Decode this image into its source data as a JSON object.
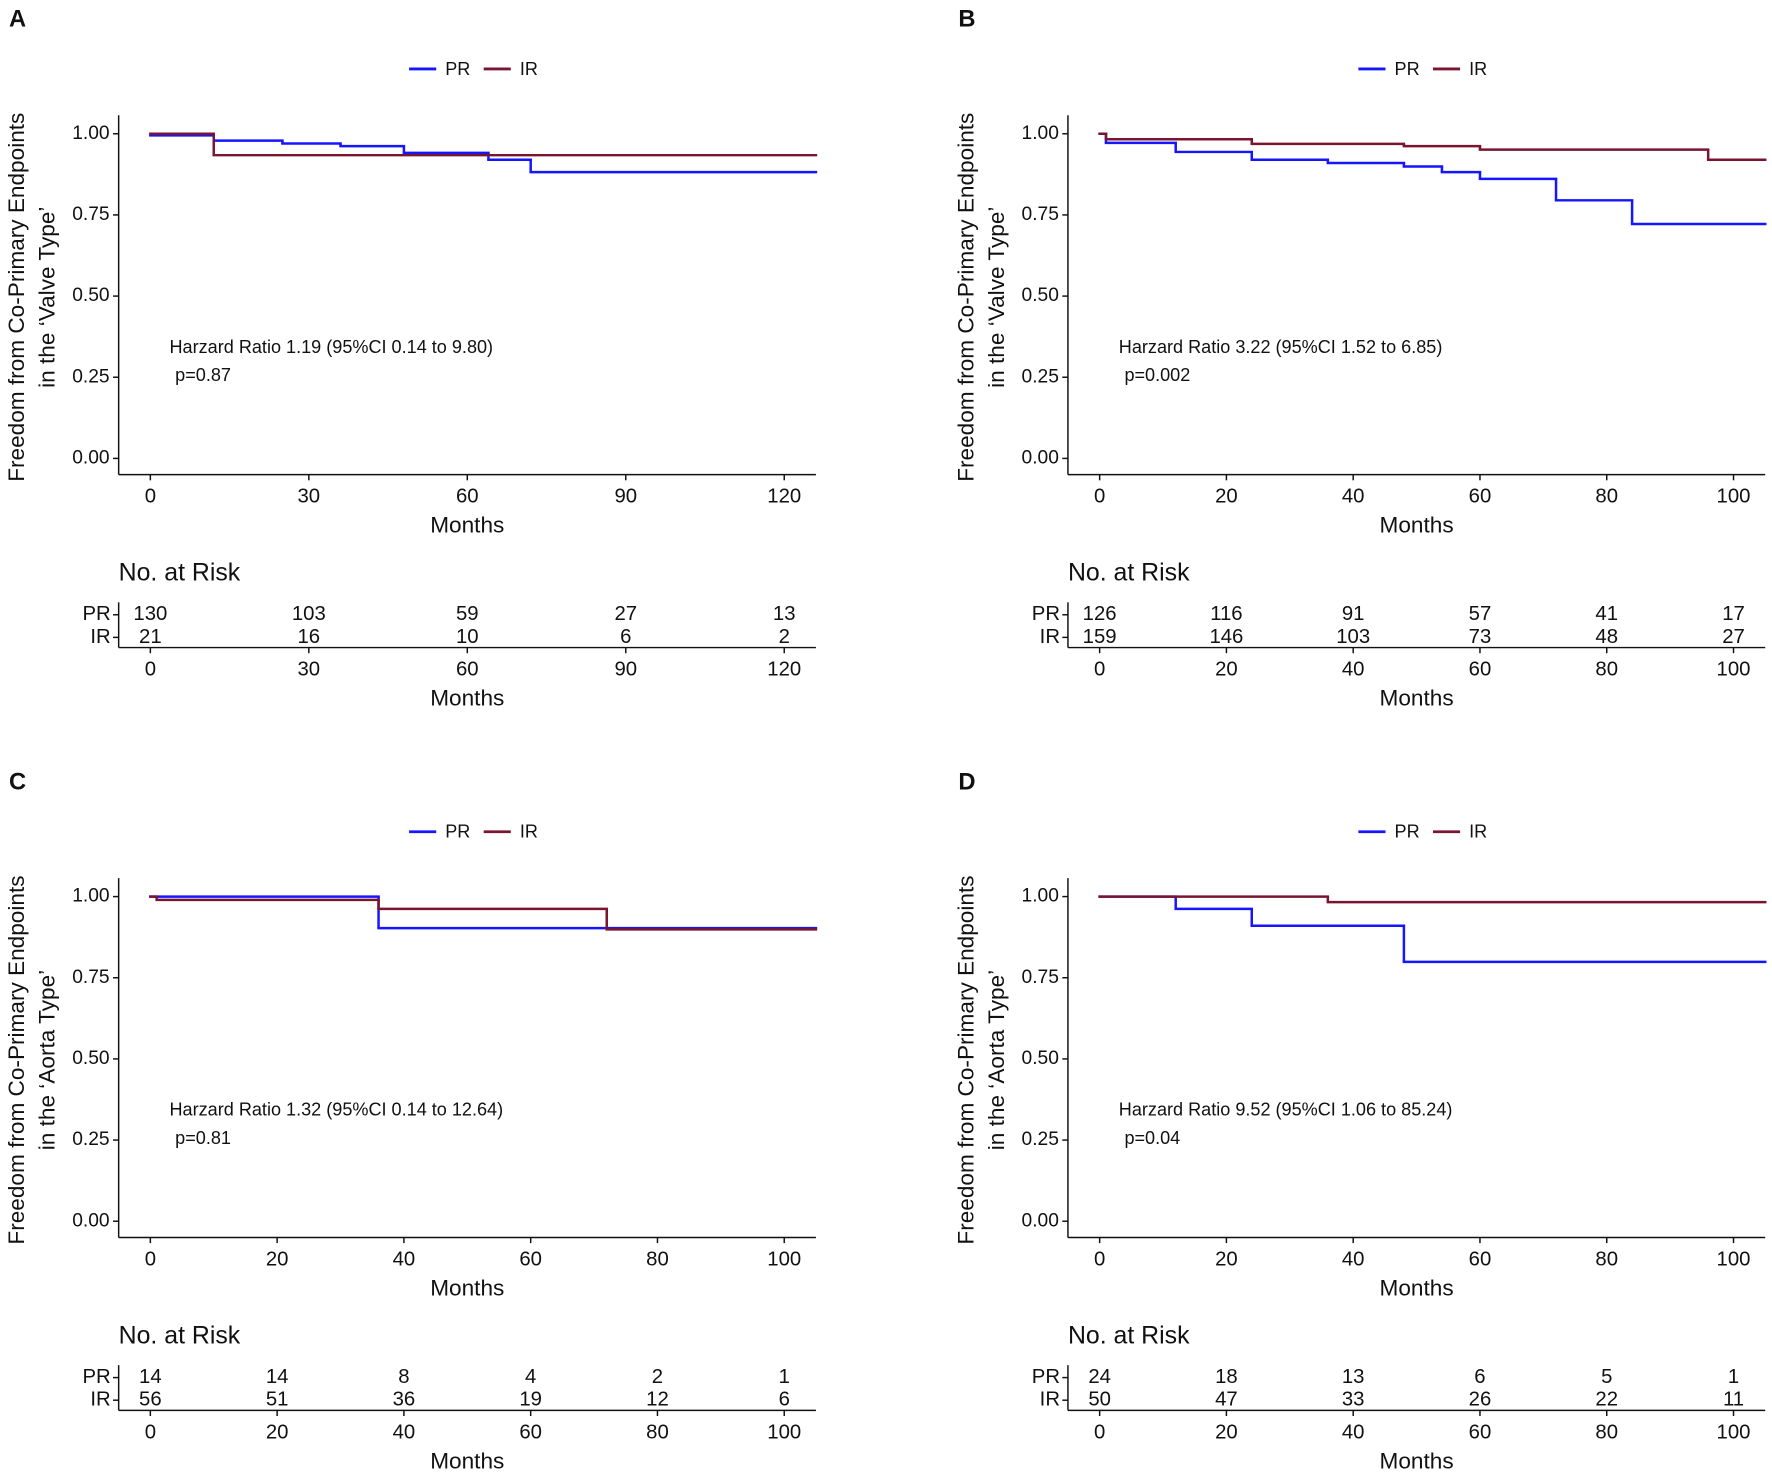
{
  "chart_data": [
    {
      "type": "line",
      "step": true,
      "panel_label": "A",
      "legend": "top",
      "ylabel": [
        "Freedom from Co-Primary Endpoints",
        "in the ‘Valve Type’"
      ],
      "xlabel": "Months",
      "xlim": [
        -6,
        126
      ],
      "xticks": [
        0,
        30,
        60,
        90,
        120
      ],
      "ylim": [
        -0.05,
        1.05
      ],
      "yticks": [
        {
          "value": 0,
          "label": "0.00"
        },
        {
          "value": 0.25,
          "label": "0.25"
        },
        {
          "value": 0.5,
          "label": "0.50"
        },
        {
          "value": 0.75,
          "label": "0.75"
        },
        {
          "value": 1,
          "label": "1.00"
        }
      ],
      "series": [
        {
          "name": "PR",
          "color": "#1515ff",
          "x": [
            0,
            12,
            25,
            36,
            48,
            64,
            72,
            126
          ],
          "values": [
            0.995,
            0.979,
            0.97,
            0.962,
            0.941,
            0.92,
            0.882,
            0.882
          ],
          "at_risk": [
            130,
            103,
            59,
            27,
            13
          ]
        },
        {
          "name": "IR",
          "color": "#7a1530",
          "x": [
            0,
            12,
            126
          ],
          "values": [
            1.0,
            0.934,
            0.934
          ],
          "at_risk": [
            21,
            16,
            10,
            6,
            2
          ]
        }
      ],
      "annotations": [
        "Harzard Ratio 1.19 (95%CI 0.14 to 9.80)",
        "p=0.87"
      ],
      "risk_title": "No. at Risk"
    },
    {
      "type": "line",
      "step": true,
      "panel_label": "B",
      "legend": "top",
      "ylabel": [
        "Freedom from Co-Primary Endpoints",
        "in the ‘Valve Type’"
      ],
      "xlabel": "Months",
      "xlim": [
        -5,
        105
      ],
      "xticks": [
        0,
        20,
        40,
        60,
        80,
        100
      ],
      "ylim": [
        -0.05,
        1.05
      ],
      "yticks": [
        {
          "value": 0,
          "label": "0.00"
        },
        {
          "value": 0.25,
          "label": "0.25"
        },
        {
          "value": 0.5,
          "label": "0.50"
        },
        {
          "value": 0.75,
          "label": "0.75"
        },
        {
          "value": 1,
          "label": "1.00"
        }
      ],
      "series": [
        {
          "name": "PR",
          "color": "#1515ff",
          "x": [
            0,
            1,
            12,
            24,
            36,
            48,
            54,
            60,
            72,
            84,
            105
          ],
          "values": [
            1.0,
            0.972,
            0.944,
            0.92,
            0.91,
            0.899,
            0.882,
            0.861,
            0.795,
            0.722,
            0.722
          ],
          "at_risk": [
            126,
            116,
            91,
            57,
            41,
            17
          ]
        },
        {
          "name": "IR",
          "color": "#7a1530",
          "x": [
            0,
            1,
            24,
            48,
            60,
            96,
            105
          ],
          "values": [
            1.0,
            0.983,
            0.969,
            0.962,
            0.951,
            0.92,
            0.92
          ],
          "at_risk": [
            159,
            146,
            103,
            73,
            48,
            27
          ]
        }
      ],
      "annotations": [
        "Harzard Ratio 3.22 (95%CI 1.52 to 6.85)",
        "p=0.002"
      ],
      "risk_title": "No. at Risk"
    },
    {
      "type": "line",
      "step": true,
      "panel_label": "C",
      "legend": "top",
      "ylabel": [
        "Freedom from Co-Primary Endpoints",
        "in the ‘Aorta Type’"
      ],
      "xlabel": "Months",
      "xlim": [
        -5,
        105
      ],
      "xticks": [
        0,
        20,
        40,
        60,
        80,
        100
      ],
      "ylim": [
        -0.05,
        1.05
      ],
      "yticks": [
        {
          "value": 0,
          "label": "0.00"
        },
        {
          "value": 0.25,
          "label": "0.25"
        },
        {
          "value": 0.5,
          "label": "0.50"
        },
        {
          "value": 0.75,
          "label": "0.75"
        },
        {
          "value": 1,
          "label": "1.00"
        }
      ],
      "series": [
        {
          "name": "PR",
          "color": "#1515ff",
          "x": [
            0,
            36,
            105
          ],
          "values": [
            1.0,
            0.903,
            0.903
          ],
          "at_risk": [
            14,
            14,
            8,
            4,
            2,
            1
          ]
        },
        {
          "name": "IR",
          "color": "#7a1530",
          "x": [
            0,
            1,
            36,
            72,
            105
          ],
          "values": [
            1.0,
            0.99,
            0.962,
            0.899,
            0.899
          ],
          "at_risk": [
            56,
            51,
            36,
            19,
            12,
            6
          ]
        }
      ],
      "annotations": [
        "Harzard Ratio 1.32 (95%CI 0.14 to 12.64)",
        "p=0.81"
      ],
      "risk_title": "No. at Risk"
    },
    {
      "type": "line",
      "step": true,
      "panel_label": "D",
      "legend": "top",
      "ylabel": [
        "Freedom from Co-Primary Endpoints",
        "in the ‘Aorta Type’"
      ],
      "xlabel": "Months",
      "xlim": [
        -5,
        105
      ],
      "xticks": [
        0,
        20,
        40,
        60,
        80,
        100
      ],
      "ylim": [
        -0.05,
        1.05
      ],
      "yticks": [
        {
          "value": 0,
          "label": "0.00"
        },
        {
          "value": 0.25,
          "label": "0.25"
        },
        {
          "value": 0.5,
          "label": "0.50"
        },
        {
          "value": 0.75,
          "label": "0.75"
        },
        {
          "value": 1,
          "label": "1.00"
        }
      ],
      "series": [
        {
          "name": "PR",
          "color": "#1515ff",
          "x": [
            0,
            12,
            24,
            48,
            105
          ],
          "values": [
            1.0,
            0.962,
            0.91,
            0.799,
            0.799
          ],
          "at_risk": [
            24,
            18,
            13,
            6,
            5,
            1
          ]
        },
        {
          "name": "IR",
          "color": "#7a1530",
          "x": [
            0,
            36,
            105
          ],
          "values": [
            1.0,
            0.983,
            0.983
          ],
          "at_risk": [
            50,
            47,
            33,
            26,
            22,
            11
          ]
        }
      ],
      "annotations": [
        "Harzard Ratio 9.52 (95%CI 1.06 to 85.24)",
        "p=0.04"
      ],
      "risk_title": "No. at Risk"
    }
  ]
}
